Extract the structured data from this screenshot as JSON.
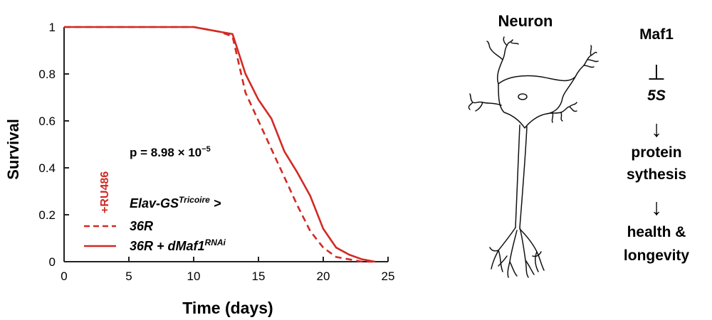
{
  "chart_data": {
    "type": "line",
    "xlabel": "Time (days)",
    "ylabel": "Survival",
    "xlim": [
      0,
      25
    ],
    "ylim": [
      0,
      1
    ],
    "xticks": [
      "0",
      "5",
      "10",
      "15",
      "20",
      "25"
    ],
    "yticks": [
      "0",
      "0.2",
      "0.4",
      "0.6",
      "0.8",
      "1"
    ],
    "grid": false,
    "annotation_p": "p = 8.98 × 10",
    "annotation_p_exp": "−5",
    "treatment_label": "+RU486",
    "legend_title": "Elav-GS",
    "legend_title_sup": "Tricoire",
    "legend_title_suffix": " >",
    "legend_position": "bottom-left",
    "series": [
      {
        "name": "36R",
        "name_sup": "",
        "style": "dashed",
        "color": "#d22a25",
        "x": [
          0,
          10,
          11,
          12,
          13,
          14,
          15,
          16,
          17,
          18,
          19,
          20,
          21,
          22,
          23,
          24
        ],
        "y": [
          1.0,
          1.0,
          0.99,
          0.98,
          0.96,
          0.72,
          0.6,
          0.48,
          0.36,
          0.24,
          0.13,
          0.06,
          0.02,
          0.01,
          0.0,
          0.0
        ]
      },
      {
        "name": "36R + dMaf1",
        "name_sup": "RNAi",
        "style": "solid",
        "color": "#d22a25",
        "x": [
          0,
          10,
          11,
          12,
          13,
          14,
          15,
          16,
          17,
          18,
          19,
          20,
          21,
          22,
          23,
          24
        ],
        "y": [
          1.0,
          1.0,
          0.99,
          0.98,
          0.97,
          0.8,
          0.69,
          0.61,
          0.47,
          0.38,
          0.28,
          0.14,
          0.06,
          0.03,
          0.01,
          0.0
        ]
      }
    ]
  },
  "neuron_title": "Neuron",
  "pathway": {
    "steps": [
      "Maf1",
      "5S",
      "protein",
      "sythesis",
      "health &",
      "longevity"
    ],
    "inhibit_symbol": "⊥",
    "arrow_symbol": "↓"
  }
}
